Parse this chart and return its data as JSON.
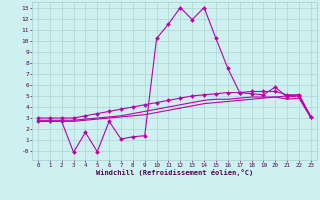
{
  "xlabel": "Windchill (Refroidissement éolien,°C)",
  "background_color": "#cdf0f0",
  "grid_color": "#aacccc",
  "line_color": "#bb00aa",
  "xlim": [
    -0.5,
    23.5
  ],
  "ylim": [
    -0.8,
    13.5
  ],
  "xticks": [
    0,
    1,
    2,
    3,
    4,
    5,
    6,
    7,
    8,
    9,
    10,
    11,
    12,
    13,
    14,
    15,
    16,
    17,
    18,
    19,
    20,
    21,
    22,
    23
  ],
  "ytick_vals": [
    0,
    1,
    2,
    3,
    4,
    5,
    6,
    7,
    8,
    9,
    10,
    11,
    12,
    13
  ],
  "ytick_labels": [
    "-0",
    "1",
    "2",
    "3",
    "4",
    "5",
    "6",
    "7",
    "8",
    "9",
    "10",
    "11",
    "12",
    "13"
  ],
  "series": [
    {
      "x": [
        0,
        1,
        2,
        3,
        4,
        5,
        6,
        7,
        8,
        9,
        10,
        11,
        12,
        13,
        14,
        15,
        16,
        17,
        18,
        19,
        20,
        21,
        22,
        23
      ],
      "y": [
        3.0,
        3.0,
        3.0,
        3.0,
        3.2,
        3.4,
        3.6,
        3.8,
        4.0,
        4.2,
        4.4,
        4.6,
        4.8,
        5.0,
        5.1,
        5.2,
        5.3,
        5.3,
        5.4,
        5.4,
        5.4,
        5.1,
        5.1,
        3.1
      ],
      "marker": true
    },
    {
      "x": [
        0,
        1,
        2,
        3,
        4,
        5,
        6,
        7,
        8,
        9,
        10,
        11,
        12,
        13,
        14,
        15,
        16,
        17,
        18,
        19,
        20,
        21,
        22,
        23
      ],
      "y": [
        2.8,
        2.8,
        2.8,
        2.8,
        2.9,
        3.0,
        3.1,
        3.2,
        3.4,
        3.6,
        3.8,
        4.0,
        4.2,
        4.4,
        4.6,
        4.7,
        4.7,
        4.8,
        4.9,
        4.9,
        4.9,
        4.7,
        4.8,
        3.0
      ],
      "marker": false
    },
    {
      "x": [
        0,
        1,
        2,
        3,
        4,
        5,
        6,
        7,
        8,
        9,
        10,
        11,
        12,
        13,
        14,
        15,
        16,
        17,
        18,
        19,
        20,
        21,
        22,
        23
      ],
      "y": [
        2.7,
        2.7,
        2.7,
        2.7,
        2.8,
        2.9,
        3.0,
        3.1,
        3.2,
        3.3,
        3.5,
        3.7,
        3.9,
        4.1,
        4.3,
        4.4,
        4.5,
        4.6,
        4.7,
        4.8,
        4.9,
        5.0,
        5.1,
        3.1
      ],
      "marker": false
    },
    {
      "x": [
        0,
        1,
        2,
        3,
        4,
        5,
        6,
        7,
        8,
        9,
        10,
        11,
        12,
        13,
        14,
        15,
        16,
        17,
        18,
        19,
        20,
        21,
        22,
        23
      ],
      "y": [
        2.7,
        2.7,
        2.7,
        -0.1,
        1.7,
        -0.05,
        2.7,
        1.1,
        1.3,
        1.4,
        10.2,
        11.5,
        13.0,
        11.9,
        13.0,
        10.2,
        7.5,
        5.3,
        5.2,
        5.1,
        5.8,
        4.9,
        5.0,
        3.1
      ],
      "marker": true
    }
  ]
}
